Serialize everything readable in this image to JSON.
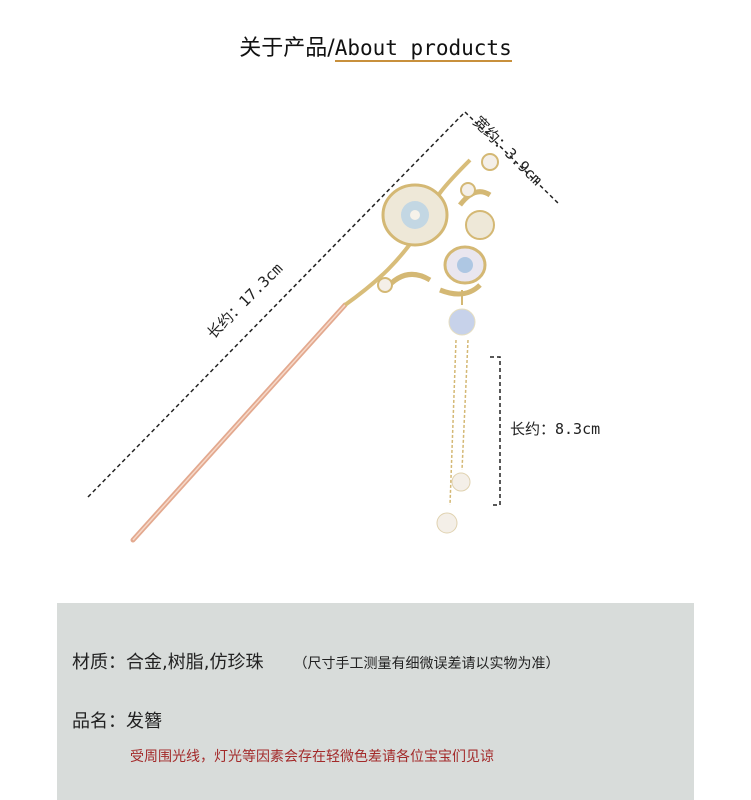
{
  "header": {
    "title_cn": "关于产品/",
    "title_en": "About products"
  },
  "dimensions": {
    "width": "宽约：3.9cm",
    "length": "长约：17.3cm",
    "tassel_length": "长约：8.3cm"
  },
  "info": {
    "material_label": "材质：",
    "material_value": "合金,树脂,仿珍珠",
    "note": "（尺寸手工测量有细微误差请以实物为准）",
    "name_label": "品名：",
    "name_value": "发簪",
    "warning": "受周围光线，灯光等因素会存在轻微色差请各位宝宝们见谅"
  },
  "colors": {
    "underline": "#c8903c",
    "panel": "#d8dcda",
    "warning": "#a32a2a",
    "stick": "#e3a98f"
  }
}
